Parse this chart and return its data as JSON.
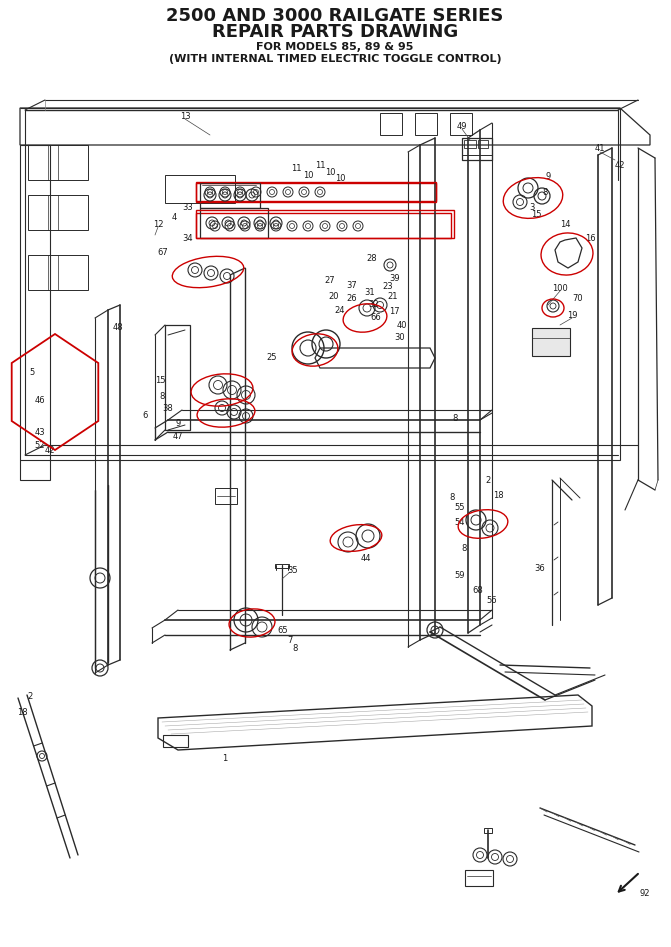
{
  "title_line1": "2500 AND 3000 RAILGATE SERIES",
  "title_line2": "REPAIR PARTS DRAWING",
  "subtitle_line1": "FOR MODELS 85, 89 & 95",
  "subtitle_line2": "(WITH INTERNAL TIMED ELECTRIC TOGGLE CONTROL)",
  "bg": "#ffffff",
  "tc": "#1a1a1a",
  "lc": "#2a2a2a",
  "rc": "#cc0000",
  "fig_w": 6.71,
  "fig_h": 9.47,
  "dpi": 100
}
